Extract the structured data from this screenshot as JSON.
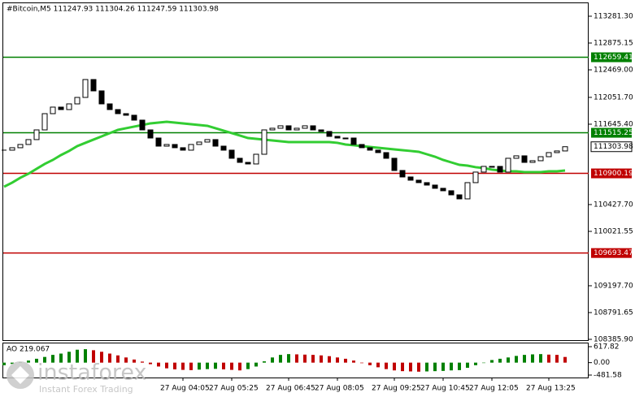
{
  "chart_data": {
    "type": "candlestick",
    "title": "#Bitcoin,M5  111247.93 111304.26 111247.59 111303.98",
    "categories": [
      null,
      null,
      null,
      null,
      null,
      null,
      null,
      null,
      null,
      null,
      null,
      null,
      null,
      null,
      null,
      null,
      null,
      null,
      null,
      null,
      null,
      null,
      "27 Aug 04:05",
      null,
      null,
      null,
      null,
      null,
      "27 Aug 05:25",
      null,
      null,
      null,
      null,
      null,
      null,
      "27 Aug 06:45",
      null,
      null,
      null,
      null,
      null,
      "27 Aug 08:05",
      null,
      null,
      null,
      null,
      null,
      null,
      "27 Aug 09:25",
      null,
      null,
      null,
      null,
      null,
      "27 Aug 10:45",
      null,
      null,
      null,
      null,
      null,
      "27 Aug 12:05",
      null,
      null,
      null,
      null,
      null,
      null,
      "27 Aug 13:25",
      null,
      null
    ],
    "close": [
      111252,
      111289,
      111338,
      111412,
      111559,
      111805,
      111904,
      111867,
      111953,
      112051,
      112322,
      112150,
      111953,
      111867,
      111805,
      111781,
      111707,
      111559,
      111436,
      111313,
      111338,
      111289,
      111252,
      111338,
      111375,
      111412,
      111313,
      111252,
      111129,
      111067,
      111043,
      111190,
      111559,
      111584,
      111621,
      111559,
      111584,
      111621,
      111559,
      111535,
      111461,
      111436,
      111436,
      111338,
      111289,
      111252,
      111215,
      111129,
      110944,
      110846,
      110797,
      110760,
      110723,
      110674,
      110637,
      110575,
      110514,
      110760,
      110920,
      111006,
      111006,
      110920,
      111129,
      111166,
      111067,
      111092,
      111153,
      111215,
      111240,
      111303.98
    ],
    "candle_color": "#000000",
    "ma": {
      "color": "#32cd32",
      "values": [
        110698,
        110760,
        110834,
        110895,
        110969,
        111043,
        111104,
        111178,
        111240,
        111313,
        111363,
        111412,
        111461,
        111510,
        111559,
        111584,
        111609,
        111633,
        111658,
        111670,
        111682,
        111670,
        111658,
        111645,
        111633,
        111621,
        111584,
        111547,
        111510,
        111473,
        111436,
        111424,
        111412,
        111399,
        111387,
        111375,
        111375,
        111375,
        111375,
        111375,
        111375,
        111363,
        111338,
        111326,
        111313,
        111301,
        111289,
        111276,
        111264,
        111252,
        111240,
        111227,
        111190,
        111153,
        111104,
        111067,
        111030,
        111018,
        110994,
        110981,
        110957,
        110944,
        110932,
        110932,
        110920,
        110920,
        110920,
        110932,
        110932,
        110944
      ]
    },
    "levels": [
      {
        "value": 112659.41,
        "color": "#008000"
      },
      {
        "value": 111515.25,
        "color": "#008000"
      },
      {
        "value": 110900.19,
        "color": "#c00000"
      },
      {
        "value": 109693.47,
        "color": "#c00000"
      }
    ],
    "current_price": 111303.98,
    "ylim": [
      108361,
      113527
    ],
    "yticks": [
      {
        "value": 113281.3,
        "label": "113281.30"
      },
      112875.15,
      {
        "value": 112469,
        "label": "112469.00"
      },
      {
        "value": 112051.7,
        "label": "112051.70"
      },
      {
        "value": 111645.4,
        "label": "111645.40"
      },
      {
        "value": 110427.7,
        "label": "110427.70"
      },
      110021.55,
      {
        "value": 109197.7,
        "label": "109197.70"
      },
      108791.65,
      {
        "value": 108385.9,
        "label": "108385.90"
      }
    ],
    "indicator": {
      "title": "AO 219.067",
      "up_color": "#008000",
      "down_color": "#c00000",
      "values": [
        -100,
        -50,
        20,
        80,
        150,
        220,
        300,
        350,
        420,
        500,
        520,
        480,
        420,
        350,
        280,
        200,
        120,
        40,
        -60,
        -150,
        -220,
        -260,
        -280,
        -290,
        -270,
        -250,
        -240,
        -260,
        -280,
        -300,
        -250,
        -150,
        50,
        200,
        300,
        330,
        320,
        310,
        300,
        280,
        250,
        200,
        150,
        80,
        -20,
        -100,
        -180,
        -250,
        -300,
        -330,
        -340,
        -350,
        -340,
        -330,
        -320,
        -300,
        -290,
        -200,
        -100,
        0,
        100,
        150,
        200,
        260,
        300,
        320,
        330,
        310,
        300,
        219.067
      ],
      "ylim": [
        -576,
        775
      ],
      "yticks": [
        617.82,
        {
          "value": 0,
          "label": "0.00"
        },
        -481.58
      ]
    },
    "watermark": {
      "brand": "instaforex",
      "slogan": "Instant Forex Trading"
    }
  }
}
